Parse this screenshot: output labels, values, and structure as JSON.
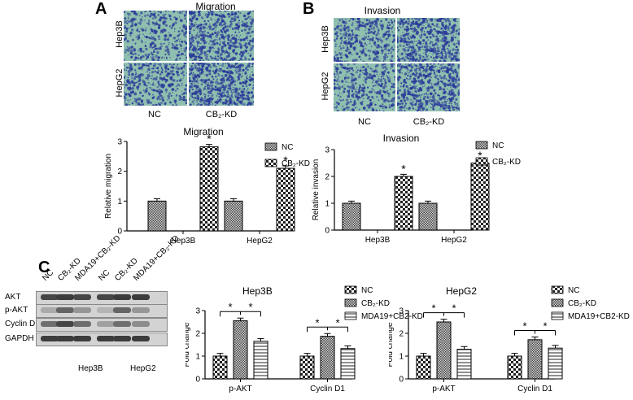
{
  "panelA": {
    "letter": "A",
    "title": "Migration",
    "rows": [
      "Hep3B",
      "HepG2"
    ],
    "cols": [
      "NC",
      "CB₂-KD"
    ]
  },
  "panelB": {
    "letter": "B",
    "title": "Invasion",
    "rows": [
      "Hep3B",
      "HepG2"
    ],
    "cols": [
      "NC",
      "CB₂-KD"
    ]
  },
  "panelC": {
    "letter": "C",
    "lanes": [
      "NC",
      "CB₂-KD",
      "MDA19+CB₂-KD",
      "NC",
      "CB₂-KD",
      "MDA19+CB₂-KD"
    ],
    "proteins": [
      "AKT",
      "p-AKT",
      "Cyclin D1",
      "GAPDH"
    ],
    "cells": [
      "Hep3B",
      "HepG2"
    ]
  },
  "colors": {
    "nc": "#7a7a7a",
    "kd": "#303030",
    "mda": "#ffffff",
    "micro_bg": "#8fbfae",
    "micro_dot": "#2c3c9a"
  },
  "chart_data": [
    {
      "id": "migration",
      "type": "bar",
      "title": "Migration",
      "ylabel": "Relative migration",
      "ylim": [
        0,
        3
      ],
      "yticks": [
        "0",
        "1",
        "2",
        "3"
      ],
      "categories": [
        "Hep3B",
        "HepG2"
      ],
      "series": [
        {
          "name": "NC",
          "values": [
            1.0,
            1.0
          ],
          "fill": "dense"
        },
        {
          "name": "CB₂-KD",
          "values": [
            2.82,
            2.1
          ],
          "fill": "check"
        }
      ],
      "significance": [
        "*",
        "*"
      ]
    },
    {
      "id": "invasion",
      "type": "bar",
      "title": "Invasion",
      "ylabel": "Relative invasion",
      "ylim": [
        0,
        3
      ],
      "yticks": [
        "0",
        "1",
        "2",
        "3"
      ],
      "categories": [
        "Hep3B",
        "HepG2"
      ],
      "series": [
        {
          "name": "NC",
          "values": [
            1.0,
            1.0
          ],
          "fill": "dense"
        },
        {
          "name": "CB₂-KD",
          "values": [
            2.0,
            2.5
          ],
          "fill": "check"
        }
      ],
      "significance": [
        "*",
        "*"
      ]
    },
    {
      "id": "c-hep3b",
      "type": "bar",
      "title": "Hep3B",
      "ylabel": "Fold change",
      "ylim": [
        0,
        3
      ],
      "yticks": [
        "0",
        "1",
        "2",
        "3"
      ],
      "categories": [
        "p-AKT",
        "Cyclin D1"
      ],
      "series": [
        {
          "name": "NC",
          "values": [
            1.0,
            1.0
          ],
          "fill": "check"
        },
        {
          "name": "CB₂-KD",
          "values": [
            2.55,
            1.87
          ],
          "fill": "dense"
        },
        {
          "name": "MDA19+CB2-KD",
          "values": [
            1.65,
            1.33
          ],
          "fill": "hline"
        }
      ],
      "significance": [
        "*",
        "*"
      ]
    },
    {
      "id": "c-hepg2",
      "type": "bar",
      "title": "HepG2",
      "ylabel": "Fold change",
      "ylim": [
        0,
        3
      ],
      "yticks": [
        "0",
        "1",
        "2",
        "3"
      ],
      "categories": [
        "p-AKT",
        "Cyclin D1"
      ],
      "series": [
        {
          "name": "NC",
          "values": [
            1.0,
            1.0
          ],
          "fill": "check"
        },
        {
          "name": "CB₂-KD",
          "values": [
            2.5,
            1.72
          ],
          "fill": "dense"
        },
        {
          "name": "MDA19+CB2-KD",
          "values": [
            1.3,
            1.35
          ],
          "fill": "hline"
        }
      ],
      "significance": [
        "*",
        "*"
      ]
    }
  ]
}
